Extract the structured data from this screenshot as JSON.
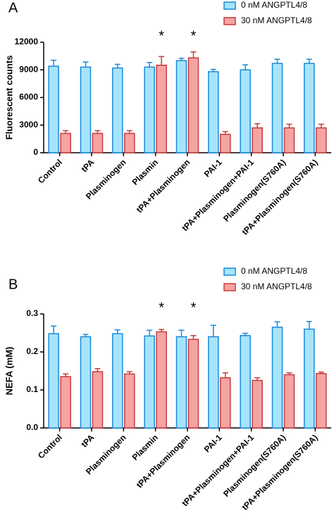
{
  "chart_data": [
    {
      "type": "bar",
      "panel_label": "A",
      "y_label": "Fluorescent counts",
      "categories": [
        "Control",
        "tPA",
        "Plasminogen",
        "Plasmin",
        "tPA+Plasminogen",
        "PAI-1",
        "tPA+Plasminogen+PAI-1",
        "Plasminogen(S760A)",
        "tPA+Plasminogen(S760A)"
      ],
      "series": [
        {
          "name": "0 nM ANGPTL4/8",
          "color": "#a6e4fb",
          "edge_color": "#1a8ad6",
          "values": [
            9400,
            9300,
            9200,
            9300,
            10000,
            8800,
            9000,
            9700,
            9700
          ],
          "errors": [
            650,
            550,
            400,
            500,
            250,
            250,
            550,
            450,
            450
          ]
        },
        {
          "name": "30 nM ANGPTL4/8",
          "color": "#f5a3a3",
          "edge_color": "#c83b3b",
          "values": [
            2100,
            2100,
            2100,
            9500,
            10300,
            2000,
            2700,
            2700,
            2700
          ],
          "errors": [
            300,
            300,
            300,
            950,
            650,
            300,
            450,
            400,
            400
          ]
        }
      ],
      "annotations": [
        {
          "text": "*",
          "category": "Plasmin"
        },
        {
          "text": "*",
          "category": "tPA+Plasminogen"
        }
      ],
      "ylim": [
        0,
        12000
      ],
      "yticks": [
        0,
        3000,
        6000,
        9000,
        12000
      ]
    },
    {
      "type": "bar",
      "panel_label": "B",
      "y_label": "NEFA (mM)",
      "categories": [
        "Control",
        "tPA",
        "Plasminogen",
        "Plasmin",
        "tPA+Plasminogen",
        "PAI-1",
        "tPA+Plasminogen+PAI-1",
        "Plasminogen(S760A)",
        "tPA+Plasminogen(S760A)"
      ],
      "series": [
        {
          "name": "0 nM ANGPTL4/8",
          "color": "#a6e4fb",
          "edge_color": "#1a8ad6",
          "values": [
            0.248,
            0.24,
            0.248,
            0.242,
            0.24,
            0.24,
            0.243,
            0.265,
            0.26
          ],
          "errors": [
            0.02,
            0.006,
            0.01,
            0.015,
            0.017,
            0.03,
            0.006,
            0.014,
            0.02
          ]
        },
        {
          "name": "30 nM ANGPTL4/8",
          "color": "#f5a3a3",
          "edge_color": "#c83b3b",
          "values": [
            0.135,
            0.148,
            0.142,
            0.253,
            0.233,
            0.132,
            0.125,
            0.14,
            0.143
          ],
          "errors": [
            0.007,
            0.008,
            0.006,
            0.006,
            0.01,
            0.013,
            0.007,
            0.005,
            0.004
          ]
        }
      ],
      "annotations": [
        {
          "text": "*",
          "category": "Plasmin"
        },
        {
          "text": "*",
          "category": "tPA+Plasminogen"
        }
      ],
      "ylim": [
        0,
        0.3
      ],
      "yticks": [
        {
          "value": 0,
          "label": "0.0"
        },
        0.1,
        0.2,
        0.3
      ]
    }
  ]
}
